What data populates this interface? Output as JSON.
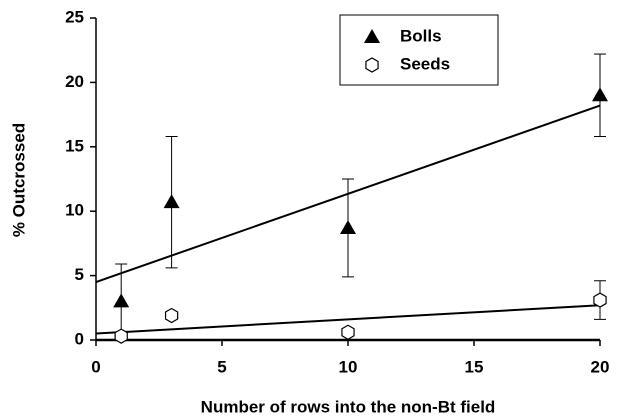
{
  "chart_data": {
    "type": "scatter",
    "xlabel": "Number of rows into the non-Bt field",
    "ylabel": "% Outcrossed",
    "xlim": [
      0,
      20
    ],
    "xticks": [
      0,
      5,
      10,
      15,
      20
    ],
    "ylim": [
      0,
      25
    ],
    "yticks": [
      0,
      5,
      10,
      15,
      20,
      25
    ],
    "legend": "top-right",
    "series": [
      {
        "name": "Bolls",
        "color": "#000000",
        "marker": "triangle",
        "x": [
          1,
          3,
          10,
          20
        ],
        "values": [
          3.0,
          10.7,
          8.7,
          19.0
        ],
        "errors": [
          2.9,
          5.1,
          3.8,
          3.2
        ],
        "trendline": {
          "x": [
            0,
            20
          ],
          "values": [
            4.5,
            18.2
          ]
        }
      },
      {
        "name": "Seeds",
        "color": "#000000",
        "marker": "hexagon",
        "x": [
          1,
          3,
          10,
          20
        ],
        "values": [
          0.3,
          1.9,
          0.6,
          3.1
        ],
        "errors": [
          null,
          null,
          null,
          1.5
        ],
        "trendline": {
          "x": [
            0,
            20
          ],
          "values": [
            0.5,
            2.7
          ]
        }
      }
    ]
  }
}
